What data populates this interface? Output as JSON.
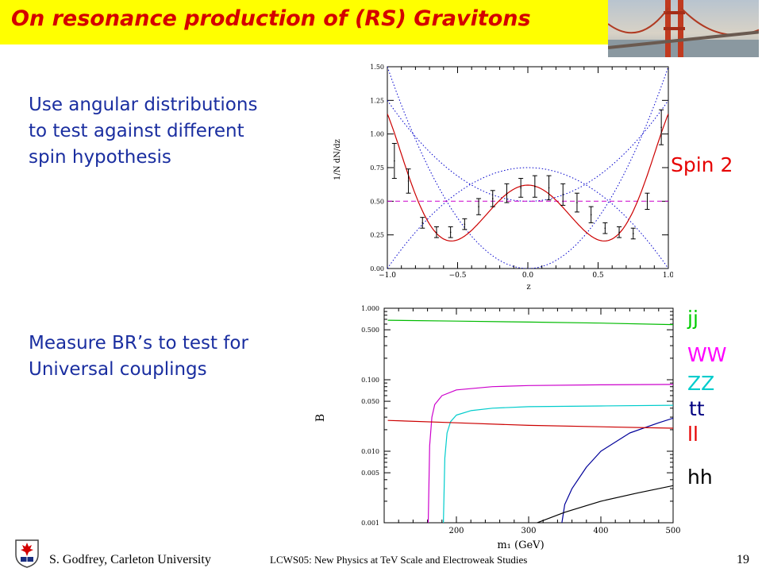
{
  "slide": {
    "title": "On resonance production of (RS) Gravitons",
    "text1": [
      "Use angular distributions",
      "to test against different",
      "spin hypothesis"
    ],
    "text2": [
      "Measure BR’s to test for",
      "Universal couplings"
    ],
    "spin_label": "Spin 2",
    "footer": {
      "author": "S. Godfrey, Carleton University",
      "conference": "LCWS05: New Physics at TeV Scale and Electroweak Studies",
      "page": "19"
    }
  },
  "chart_data": [
    {
      "type": "line",
      "title": "",
      "xlabel": "z",
      "ylabel": "1/N dN/dz",
      "xlim": [
        -1.0,
        1.0
      ],
      "ylim": [
        0.0,
        1.5
      ],
      "x_ticks": [
        "−1.0",
        "−0.5",
        "0.0",
        "0.5",
        "1.0"
      ],
      "y_ticks": [
        "0.00",
        "0.25",
        "0.50",
        "0.75",
        "1.00",
        "1.25",
        "1.50"
      ],
      "colors": {
        "fit": "#cc0000",
        "dotted": "#0000cc",
        "flat": "#cc00cc",
        "errors": "#000000"
      },
      "data_points": {
        "x": [
          -0.95,
          -0.85,
          -0.75,
          -0.65,
          -0.55,
          -0.45,
          -0.35,
          -0.25,
          -0.15,
          -0.05,
          0.05,
          0.15,
          0.25,
          0.35,
          0.45,
          0.55,
          0.65,
          0.75,
          0.85,
          0.95
        ],
        "y": [
          0.8,
          0.65,
          0.34,
          0.27,
          0.27,
          0.33,
          0.46,
          0.52,
          0.56,
          0.6,
          0.61,
          0.6,
          0.55,
          0.49,
          0.4,
          0.3,
          0.27,
          0.26,
          0.5,
          1.05
        ],
        "err": [
          0.13,
          0.09,
          0.04,
          0.04,
          0.04,
          0.04,
          0.06,
          0.06,
          0.07,
          0.07,
          0.08,
          0.09,
          0.08,
          0.07,
          0.06,
          0.04,
          0.04,
          0.04,
          0.06,
          0.13
        ]
      }
    },
    {
      "type": "line",
      "title": "",
      "xlabel": "m₁ (GeV)",
      "ylabel": "B",
      "xlim": [
        100,
        500
      ],
      "ylim": [
        0.001,
        1.0
      ],
      "yscale": "log",
      "x_ticks": [
        "200",
        "300",
        "400",
        "500"
      ],
      "y_ticks": [
        "1.000",
        "0.500",
        "0.100",
        "0.050",
        "0.010",
        "0.005",
        "0.001"
      ],
      "series": [
        {
          "name": "jj",
          "color": "#00bb00",
          "x": [
            105,
            200,
            300,
            400,
            500
          ],
          "y": [
            0.68,
            0.66,
            0.64,
            0.62,
            0.59
          ]
        },
        {
          "name": "WW",
          "color": "#cc00cc",
          "x": [
            161,
            163,
            166,
            170,
            180,
            200,
            250,
            300,
            400,
            500
          ],
          "y": [
            0.001,
            0.012,
            0.03,
            0.045,
            0.06,
            0.072,
            0.08,
            0.083,
            0.085,
            0.086
          ]
        },
        {
          "name": "ZZ",
          "color": "#00cccc",
          "x": [
            182,
            184,
            187,
            192,
            200,
            220,
            250,
            300,
            400,
            500
          ],
          "y": [
            0.001,
            0.008,
            0.018,
            0.026,
            0.032,
            0.037,
            0.04,
            0.042,
            0.043,
            0.044
          ]
        },
        {
          "name": "tt",
          "color": "#000099",
          "x": [
            346,
            350,
            360,
            380,
            400,
            440,
            480,
            500
          ],
          "y": [
            0.001,
            0.0018,
            0.003,
            0.006,
            0.01,
            0.018,
            0.025,
            0.029
          ]
        },
        {
          "name": "ll",
          "color": "#cc0000",
          "x": [
            105,
            200,
            300,
            400,
            500
          ],
          "y": [
            0.027,
            0.025,
            0.023,
            0.022,
            0.021
          ]
        },
        {
          "name": "hh",
          "color": "#000000",
          "x": [
            250,
            300,
            350,
            400,
            450,
            500
          ],
          "y": [
            0.0005,
            0.0009,
            0.0014,
            0.002,
            0.0026,
            0.0033
          ]
        }
      ]
    }
  ]
}
